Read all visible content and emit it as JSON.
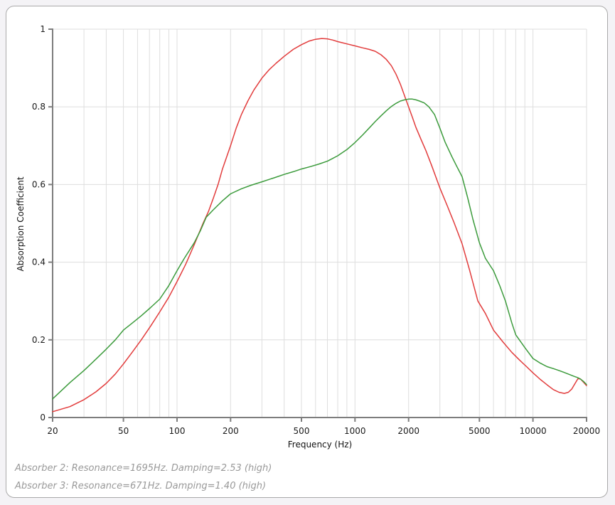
{
  "page": {
    "background_color": "#f4f3f6",
    "card_border_color": "#a9a9a9",
    "card_background_color": "#ffffff"
  },
  "chart_data": {
    "type": "line",
    "title": "",
    "xlabel": "Frequency (Hz)",
    "ylabel": "Absorption Coefficient",
    "x_scale": "log",
    "xlim": [
      20,
      20000
    ],
    "ylim": [
      0,
      1
    ],
    "grid": true,
    "legend_position": "none (series identified by notes below chart)",
    "x_ticks": [
      20,
      50,
      100,
      200,
      500,
      1000,
      2000,
      5000,
      10000,
      20000
    ],
    "x_tick_labels": [
      "20",
      "50",
      "100",
      "200",
      "500",
      "1000",
      "2000",
      "5000",
      "10000",
      "20000"
    ],
    "y_ticks": [
      0,
      0.2,
      0.4,
      0.6,
      0.8,
      1
    ],
    "y_tick_labels": [
      "0",
      "0.2",
      "0.4",
      "0.6",
      "0.8",
      "1"
    ],
    "x_gridlines": [
      20,
      30,
      40,
      50,
      60,
      70,
      80,
      90,
      100,
      200,
      300,
      400,
      500,
      600,
      700,
      800,
      900,
      1000,
      2000,
      3000,
      4000,
      5000,
      6000,
      7000,
      8000,
      9000,
      10000,
      20000
    ],
    "y_gridlines": [
      0.2,
      0.4,
      0.6,
      0.8,
      1
    ],
    "colors": {
      "grid": "#dedede",
      "axis": "#7d7d7d",
      "tick_text": "#1a1a1a",
      "absorber3_red": "#e23c3c",
      "absorber2_green": "#3c9b3c"
    },
    "series": [
      {
        "id": "absorber-3",
        "name": "Absorber 3 (Resonance=671Hz, Damping=1.40)",
        "color": "#e23c3c",
        "points": [
          [
            20,
            0.015
          ],
          [
            25,
            0.028
          ],
          [
            30,
            0.046
          ],
          [
            35,
            0.066
          ],
          [
            40,
            0.088
          ],
          [
            45,
            0.112
          ],
          [
            50,
            0.138
          ],
          [
            56,
            0.168
          ],
          [
            63,
            0.2
          ],
          [
            71,
            0.235
          ],
          [
            80,
            0.272
          ],
          [
            90,
            0.31
          ],
          [
            100,
            0.35
          ],
          [
            112,
            0.395
          ],
          [
            125,
            0.445
          ],
          [
            140,
            0.5
          ],
          [
            150,
            0.53
          ],
          [
            160,
            0.565
          ],
          [
            170,
            0.6
          ],
          [
            180,
            0.64
          ],
          [
            200,
            0.7
          ],
          [
            215,
            0.745
          ],
          [
            230,
            0.78
          ],
          [
            250,
            0.815
          ],
          [
            270,
            0.843
          ],
          [
            300,
            0.874
          ],
          [
            330,
            0.896
          ],
          [
            360,
            0.912
          ],
          [
            400,
            0.93
          ],
          [
            450,
            0.948
          ],
          [
            500,
            0.96
          ],
          [
            550,
            0.969
          ],
          [
            600,
            0.974
          ],
          [
            650,
            0.976
          ],
          [
            700,
            0.975
          ],
          [
            750,
            0.972
          ],
          [
            800,
            0.968
          ],
          [
            850,
            0.965
          ],
          [
            900,
            0.962
          ],
          [
            1000,
            0.957
          ],
          [
            1100,
            0.952
          ],
          [
            1200,
            0.948
          ],
          [
            1300,
            0.943
          ],
          [
            1400,
            0.934
          ],
          [
            1500,
            0.922
          ],
          [
            1600,
            0.906
          ],
          [
            1700,
            0.884
          ],
          [
            1800,
            0.858
          ],
          [
            1900,
            0.828
          ],
          [
            2000,
            0.8
          ],
          [
            2100,
            0.773
          ],
          [
            2200,
            0.747
          ],
          [
            2350,
            0.716
          ],
          [
            2500,
            0.688
          ],
          [
            2700,
            0.648
          ],
          [
            3000,
            0.591
          ],
          [
            3300,
            0.545
          ],
          [
            3600,
            0.502
          ],
          [
            4000,
            0.447
          ],
          [
            4400,
            0.38
          ],
          [
            4900,
            0.3
          ],
          [
            5400,
            0.268
          ],
          [
            6000,
            0.225
          ],
          [
            6800,
            0.194
          ],
          [
            7600,
            0.168
          ],
          [
            8400,
            0.148
          ],
          [
            9200,
            0.131
          ],
          [
            10000,
            0.115
          ],
          [
            11000,
            0.098
          ],
          [
            12000,
            0.084
          ],
          [
            13000,
            0.072
          ],
          [
            14000,
            0.065
          ],
          [
            15000,
            0.062
          ],
          [
            15800,
            0.065
          ],
          [
            16500,
            0.073
          ],
          [
            17200,
            0.087
          ],
          [
            17900,
            0.1
          ],
          [
            18500,
            0.099
          ],
          [
            19200,
            0.091
          ],
          [
            20000,
            0.082
          ]
        ]
      },
      {
        "id": "absorber-2",
        "name": "Absorber 2 (Resonance=1695Hz, Damping=2.53)",
        "color": "#3c9b3c",
        "points": [
          [
            20,
            0.048
          ],
          [
            25,
            0.09
          ],
          [
            30,
            0.121
          ],
          [
            35,
            0.15
          ],
          [
            40,
            0.176
          ],
          [
            45,
            0.2
          ],
          [
            50,
            0.225
          ],
          [
            56,
            0.243
          ],
          [
            63,
            0.262
          ],
          [
            71,
            0.283
          ],
          [
            80,
            0.305
          ],
          [
            90,
            0.34
          ],
          [
            100,
            0.378
          ],
          [
            110,
            0.41
          ],
          [
            125,
            0.45
          ],
          [
            135,
            0.48
          ],
          [
            146,
            0.516
          ],
          [
            160,
            0.535
          ],
          [
            180,
            0.558
          ],
          [
            200,
            0.576
          ],
          [
            230,
            0.589
          ],
          [
            260,
            0.598
          ],
          [
            300,
            0.607
          ],
          [
            350,
            0.617
          ],
          [
            400,
            0.626
          ],
          [
            450,
            0.633
          ],
          [
            500,
            0.64
          ],
          [
            560,
            0.646
          ],
          [
            630,
            0.653
          ],
          [
            700,
            0.66
          ],
          [
            740,
            0.666
          ],
          [
            800,
            0.674
          ],
          [
            900,
            0.69
          ],
          [
            1000,
            0.708
          ],
          [
            1100,
            0.727
          ],
          [
            1200,
            0.745
          ],
          [
            1300,
            0.762
          ],
          [
            1400,
            0.777
          ],
          [
            1500,
            0.79
          ],
          [
            1600,
            0.801
          ],
          [
            1700,
            0.809
          ],
          [
            1800,
            0.815
          ],
          [
            1900,
            0.818
          ],
          [
            2000,
            0.82
          ],
          [
            2100,
            0.82
          ],
          [
            2200,
            0.818
          ],
          [
            2300,
            0.815
          ],
          [
            2450,
            0.81
          ],
          [
            2600,
            0.8
          ],
          [
            2800,
            0.78
          ],
          [
            3000,
            0.745
          ],
          [
            3200,
            0.71
          ],
          [
            3500,
            0.672
          ],
          [
            3700,
            0.65
          ],
          [
            4000,
            0.62
          ],
          [
            4300,
            0.565
          ],
          [
            4600,
            0.51
          ],
          [
            5000,
            0.45
          ],
          [
            5400,
            0.41
          ],
          [
            6000,
            0.378
          ],
          [
            6500,
            0.34
          ],
          [
            7000,
            0.3
          ],
          [
            7600,
            0.244
          ],
          [
            8000,
            0.213
          ],
          [
            9000,
            0.18
          ],
          [
            10000,
            0.152
          ],
          [
            11000,
            0.14
          ],
          [
            12000,
            0.131
          ],
          [
            13000,
            0.126
          ],
          [
            14000,
            0.121
          ],
          [
            15000,
            0.116
          ],
          [
            16000,
            0.111
          ],
          [
            17000,
            0.106
          ],
          [
            17800,
            0.103
          ],
          [
            18500,
            0.099
          ],
          [
            19200,
            0.093
          ],
          [
            20000,
            0.085
          ]
        ]
      }
    ]
  },
  "footer": {
    "lines": [
      "Absorber 2: Resonance=1695Hz. Damping=2.53 (high)",
      "Absorber 3: Resonance=671Hz. Damping=1.40 (high)"
    ]
  }
}
